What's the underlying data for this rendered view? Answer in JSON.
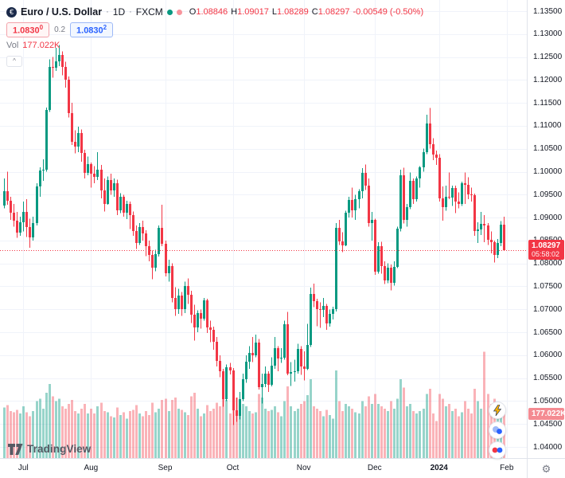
{
  "colors": {
    "up": "#089981",
    "down": "#f23645",
    "vol_up": "rgba(8,153,129,0.42)",
    "vol_down": "rgba(242,54,69,0.38)",
    "grid": "#f0f3fa",
    "accent_blue": "#2962ff",
    "price_tag_bg": "#f23645",
    "vol_tag_bg": "#f48b92"
  },
  "header": {
    "symbol": "Euro / U.S. Dollar",
    "separator": "·",
    "interval": "1D",
    "exchange": "FXCM",
    "logo_letter": "€",
    "ohlc": {
      "o_label": "O",
      "o": "1.08846",
      "h_label": "H",
      "h": "1.09017",
      "l_label": "L",
      "l": "1.08289",
      "c_label": "C",
      "c": "1.08297",
      "change": "-0.00549 (-0.50%)"
    },
    "sell": {
      "main": "1.0830",
      "sup": "0"
    },
    "spread": "0.2",
    "buy": {
      "main": "1.0830",
      "sup": "2"
    },
    "vol_label": "Vol",
    "vol_value": "177.022K",
    "collapse_glyph": "^"
  },
  "footer": {
    "logo_text": "TradingView",
    "gear_glyph": "⚙"
  },
  "chart_data": {
    "type": "candlestick",
    "title": "Euro / U.S. Dollar",
    "interval": "1D",
    "exchange": "FXCM",
    "legend_note": "volume overlay at bottom of pane",
    "price_axis_top": 1.135,
    "price_axis_bottom": 1.04,
    "price_ticks": [
      "1.13500",
      "1.13000",
      "1.12500",
      "1.12000",
      "1.11500",
      "1.11000",
      "1.10500",
      "1.10000",
      "1.09500",
      "1.09000",
      "1.08500",
      "1.08000",
      "1.07500",
      "1.07000",
      "1.06500",
      "1.06000",
      "1.05500",
      "1.05000",
      "1.04500",
      "1.04000"
    ],
    "time_ticks": [
      {
        "label": "Jul",
        "index": 6,
        "bold": false
      },
      {
        "label": "Aug",
        "index": 27,
        "bold": false
      },
      {
        "label": "Sep",
        "index": 50,
        "bold": false
      },
      {
        "label": "Oct",
        "index": 71,
        "bold": false
      },
      {
        "label": "Nov",
        "index": 93,
        "bold": false
      },
      {
        "label": "Dec",
        "index": 115,
        "bold": false
      },
      {
        "label": "2024",
        "index": 135,
        "bold": true
      },
      {
        "label": "Feb",
        "index": 156,
        "bold": false
      }
    ],
    "last_price": 1.08297,
    "last_price_label": "1.08297",
    "countdown": "05:58:02",
    "last_volume_k": 177.022,
    "last_volume_label": "177.022K",
    "candle_format": [
      "open",
      "high",
      "low",
      "close",
      "volume_k"
    ],
    "candles": [
      [
        1.0927,
        1.0985,
        1.092,
        1.0957,
        205
      ],
      [
        1.0957,
        1.1,
        1.0928,
        1.0936,
        215
      ],
      [
        1.0936,
        1.0945,
        1.0895,
        1.091,
        190
      ],
      [
        1.091,
        1.093,
        1.088,
        1.0893,
        185
      ],
      [
        1.0893,
        1.0912,
        1.0856,
        1.0868,
        195
      ],
      [
        1.0868,
        1.0902,
        1.086,
        1.089,
        180
      ],
      [
        1.089,
        1.0935,
        1.087,
        1.0912,
        210
      ],
      [
        1.0912,
        1.094,
        1.0858,
        1.088,
        185
      ],
      [
        1.088,
        1.0898,
        1.0834,
        1.0857,
        170
      ],
      [
        1.0857,
        1.0902,
        1.085,
        1.0888,
        190
      ],
      [
        1.0888,
        1.0975,
        1.0883,
        1.0968,
        230
      ],
      [
        1.0968,
        1.101,
        1.0945,
        1.1002,
        240
      ],
      [
        1.1002,
        1.1027,
        1.098,
        1.1005,
        200
      ],
      [
        1.1005,
        1.114,
        1.1,
        1.1135,
        265
      ],
      [
        1.1135,
        1.1245,
        1.113,
        1.1228,
        300
      ],
      [
        1.1228,
        1.125,
        1.1205,
        1.1227,
        250
      ],
      [
        1.1227,
        1.127,
        1.122,
        1.124,
        230
      ],
      [
        1.124,
        1.1276,
        1.123,
        1.1255,
        240
      ],
      [
        1.1255,
        1.1262,
        1.121,
        1.1228,
        210
      ],
      [
        1.1228,
        1.124,
        1.1183,
        1.12,
        200
      ],
      [
        1.12,
        1.1208,
        1.1118,
        1.1127,
        220
      ],
      [
        1.1127,
        1.115,
        1.1058,
        1.1065,
        235
      ],
      [
        1.1065,
        1.109,
        1.104,
        1.1055,
        190
      ],
      [
        1.1055,
        1.1098,
        1.1043,
        1.1085,
        180
      ],
      [
        1.1085,
        1.1092,
        1.1022,
        1.104,
        200
      ],
      [
        1.104,
        1.1048,
        1.0985,
        1.0998,
        220
      ],
      [
        1.0998,
        1.1033,
        1.0992,
        1.1016,
        180
      ],
      [
        1.1016,
        1.102,
        1.0965,
        1.0995,
        200
      ],
      [
        1.0995,
        1.1012,
        1.0975,
        1.0988,
        180
      ],
      [
        1.0988,
        1.1043,
        1.0982,
        1.1005,
        210
      ],
      [
        1.1005,
        1.1015,
        1.0942,
        1.096,
        225
      ],
      [
        1.096,
        1.0985,
        1.0913,
        1.093,
        190
      ],
      [
        1.093,
        1.099,
        1.0928,
        1.0982,
        185
      ],
      [
        1.0982,
        1.0996,
        1.095,
        1.096,
        170
      ],
      [
        1.096,
        1.0985,
        1.0945,
        1.0975,
        165
      ],
      [
        1.0975,
        1.0983,
        1.0905,
        1.0915,
        205
      ],
      [
        1.0915,
        1.0953,
        1.091,
        1.0945,
        175
      ],
      [
        1.0945,
        1.095,
        1.0902,
        1.091,
        185
      ],
      [
        1.091,
        1.0937,
        1.0897,
        1.093,
        160
      ],
      [
        1.093,
        1.0935,
        1.0875,
        1.0905,
        190
      ],
      [
        1.0905,
        1.0913,
        1.086,
        1.087,
        195
      ],
      [
        1.087,
        1.0883,
        1.0832,
        1.0845,
        215
      ],
      [
        1.0845,
        1.0888,
        1.084,
        1.088,
        180
      ],
      [
        1.088,
        1.0893,
        1.085,
        1.0865,
        170
      ],
      [
        1.0865,
        1.0872,
        1.0816,
        1.0838,
        190
      ],
      [
        1.0838,
        1.085,
        1.0805,
        1.0818,
        175
      ],
      [
        1.0818,
        1.0828,
        1.0766,
        1.079,
        225
      ],
      [
        1.079,
        1.083,
        1.0783,
        1.082,
        185
      ],
      [
        1.082,
        1.0883,
        1.0815,
        1.0878,
        200
      ],
      [
        1.0878,
        1.0928,
        1.0838,
        1.0843,
        235
      ],
      [
        1.0843,
        1.085,
        1.0772,
        1.0779,
        240
      ],
      [
        1.0779,
        1.0808,
        1.076,
        1.0795,
        190
      ],
      [
        1.0795,
        1.08,
        1.0715,
        1.0725,
        235
      ],
      [
        1.0725,
        1.0748,
        1.0686,
        1.07,
        245
      ],
      [
        1.07,
        1.0745,
        1.069,
        1.073,
        200
      ],
      [
        1.073,
        1.0738,
        1.0686,
        1.07,
        195
      ],
      [
        1.07,
        1.076,
        1.0692,
        1.075,
        185
      ],
      [
        1.075,
        1.0767,
        1.0712,
        1.0732,
        175
      ],
      [
        1.0732,
        1.074,
        1.067,
        1.0688,
        250
      ],
      [
        1.0688,
        1.071,
        1.0632,
        1.066,
        265
      ],
      [
        1.066,
        1.0698,
        1.065,
        1.0692,
        200
      ],
      [
        1.0692,
        1.07,
        1.0658,
        1.068,
        170
      ],
      [
        1.068,
        1.0725,
        1.0675,
        1.072,
        180
      ],
      [
        1.072,
        1.0723,
        1.0648,
        1.066,
        215
      ],
      [
        1.066,
        1.0675,
        1.0628,
        1.0655,
        190
      ],
      [
        1.0655,
        1.0662,
        1.0612,
        1.063,
        200
      ],
      [
        1.063,
        1.064,
        1.0575,
        1.0588,
        225
      ],
      [
        1.0588,
        1.06,
        1.0552,
        1.0565,
        210
      ],
      [
        1.0565,
        1.057,
        1.0488,
        1.0505,
        255
      ],
      [
        1.0505,
        1.058,
        1.05,
        1.0573,
        235
      ],
      [
        1.0573,
        1.0583,
        1.0558,
        1.0567,
        180
      ],
      [
        1.0567,
        1.0572,
        1.0448,
        1.048,
        285
      ],
      [
        1.048,
        1.0508,
        1.0455,
        1.0467,
        245
      ],
      [
        1.0467,
        1.052,
        1.046,
        1.0505,
        230
      ],
      [
        1.0505,
        1.056,
        1.05,
        1.0548,
        220
      ],
      [
        1.0548,
        1.06,
        1.054,
        1.0586,
        210
      ],
      [
        1.0586,
        1.062,
        1.057,
        1.0605,
        190
      ],
      [
        1.0605,
        1.064,
        1.0585,
        1.06,
        180
      ],
      [
        1.06,
        1.0645,
        1.0595,
        1.0627,
        185
      ],
      [
        1.0627,
        1.0635,
        1.0525,
        1.053,
        260
      ],
      [
        1.053,
        1.056,
        1.0495,
        1.0537,
        245
      ],
      [
        1.0537,
        1.0575,
        1.053,
        1.056,
        200
      ],
      [
        1.056,
        1.0565,
        1.052,
        1.0536,
        190
      ],
      [
        1.0536,
        1.0595,
        1.0532,
        1.0577,
        195
      ],
      [
        1.0577,
        1.064,
        1.057,
        1.0615,
        210
      ],
      [
        1.0615,
        1.062,
        1.0565,
        1.0593,
        185
      ],
      [
        1.0593,
        1.0615,
        1.0583,
        1.0594,
        170
      ],
      [
        1.0594,
        1.0675,
        1.059,
        1.0668,
        230
      ],
      [
        1.0668,
        1.0694,
        1.0556,
        1.056,
        290
      ],
      [
        1.056,
        1.0585,
        1.0533,
        1.0563,
        210
      ],
      [
        1.0563,
        1.059,
        1.0542,
        1.0565,
        190
      ],
      [
        1.0565,
        1.0625,
        1.056,
        1.0614,
        200
      ],
      [
        1.0614,
        1.062,
        1.0557,
        1.0575,
        220
      ],
      [
        1.0575,
        1.0608,
        1.0545,
        1.057,
        230
      ],
      [
        1.057,
        1.0668,
        1.0568,
        1.0622,
        255
      ],
      [
        1.0622,
        1.0747,
        1.0618,
        1.0733,
        320
      ],
      [
        1.0733,
        1.0756,
        1.0705,
        1.0718,
        210
      ],
      [
        1.0718,
        1.0723,
        1.0663,
        1.07,
        200
      ],
      [
        1.07,
        1.0715,
        1.066,
        1.0698,
        190
      ],
      [
        1.0698,
        1.0725,
        1.0683,
        1.0707,
        170
      ],
      [
        1.0707,
        1.0712,
        1.0655,
        1.067,
        195
      ],
      [
        1.067,
        1.07,
        1.0662,
        1.069,
        175
      ],
      [
        1.069,
        1.0706,
        1.0678,
        1.07,
        160
      ],
      [
        1.07,
        1.0888,
        1.0695,
        1.0877,
        355
      ],
      [
        1.0877,
        1.0895,
        1.084,
        1.0848,
        230
      ],
      [
        1.0848,
        1.0868,
        1.0825,
        1.084,
        190
      ],
      [
        1.084,
        1.0915,
        1.0838,
        1.091,
        220
      ],
      [
        1.091,
        1.0945,
        1.09,
        1.0938,
        210
      ],
      [
        1.0938,
        1.0965,
        1.09,
        1.0915,
        200
      ],
      [
        1.0915,
        1.095,
        1.0895,
        1.094,
        185
      ],
      [
        1.094,
        1.0962,
        1.092,
        1.0957,
        180
      ],
      [
        1.0957,
        1.1008,
        1.0942,
        1.0997,
        230
      ],
      [
        1.0997,
        1.1016,
        1.096,
        1.097,
        210
      ],
      [
        1.097,
        1.0985,
        1.088,
        1.0888,
        250
      ],
      [
        1.0888,
        1.0912,
        1.085,
        1.0895,
        220
      ],
      [
        1.0895,
        1.0898,
        1.0775,
        1.0782,
        260
      ],
      [
        1.0782,
        1.0846,
        1.0778,
        1.0837,
        220
      ],
      [
        1.0837,
        1.0847,
        1.0778,
        1.0795,
        210
      ],
      [
        1.0795,
        1.0805,
        1.0755,
        1.0763,
        200
      ],
      [
        1.0763,
        1.08,
        1.0757,
        1.079,
        190
      ],
      [
        1.079,
        1.0798,
        1.0741,
        1.0758,
        230
      ],
      [
        1.0758,
        1.0805,
        1.0752,
        1.0793,
        200
      ],
      [
        1.0793,
        1.088,
        1.079,
        1.0876,
        240
      ],
      [
        1.0876,
        1.1004,
        1.087,
        1.0993,
        320
      ],
      [
        1.0993,
        1.1009,
        1.0887,
        1.0895,
        285
      ],
      [
        1.0895,
        1.093,
        1.088,
        1.0922,
        210
      ],
      [
        1.0922,
        1.0998,
        1.0918,
        1.098,
        220
      ],
      [
        1.098,
        1.0985,
        1.093,
        1.094,
        190
      ],
      [
        1.094,
        1.099,
        1.0935,
        1.0985,
        180
      ],
      [
        1.0985,
        1.1012,
        1.0965,
        1.1009,
        190
      ],
      [
        1.1009,
        1.105,
        1.1,
        1.1043,
        200
      ],
      [
        1.1043,
        1.1124,
        1.1038,
        1.1105,
        260
      ],
      [
        1.1105,
        1.1139,
        1.105,
        1.106,
        280
      ],
      [
        1.106,
        1.1073,
        1.1025,
        1.1038,
        180
      ],
      [
        1.1038,
        1.1046,
        1.1015,
        1.103,
        150
      ],
      [
        1.103,
        1.1038,
        1.0935,
        1.0942,
        260
      ],
      [
        1.0942,
        1.0968,
        1.0893,
        1.0922,
        240
      ],
      [
        1.0922,
        1.097,
        1.0915,
        1.0945,
        210
      ],
      [
        1.0945,
        1.0998,
        1.094,
        1.0944,
        220
      ],
      [
        1.0944,
        1.097,
        1.0925,
        1.0965,
        190
      ],
      [
        1.0965,
        1.097,
        1.091,
        1.0935,
        200
      ],
      [
        1.0935,
        1.0955,
        1.092,
        1.093,
        170
      ],
      [
        1.093,
        1.0978,
        1.0925,
        1.0975,
        185
      ],
      [
        1.0975,
        1.0998,
        1.093,
        1.0972,
        230
      ],
      [
        1.0972,
        1.0988,
        1.094,
        1.0951,
        200
      ],
      [
        1.0951,
        1.0965,
        1.0935,
        1.0948,
        180
      ],
      [
        1.0948,
        1.0952,
        1.086,
        1.087,
        280
      ],
      [
        1.087,
        1.089,
        1.0845,
        1.0875,
        230
      ],
      [
        1.0875,
        1.0912,
        1.0862,
        1.0887,
        200
      ],
      [
        1.0887,
        1.0905,
        1.0846,
        1.0883,
        430
      ],
      [
        1.0883,
        1.0888,
        1.084,
        1.0852,
        260
      ],
      [
        1.0852,
        1.087,
        1.0822,
        1.0846,
        220
      ],
      [
        1.0846,
        1.085,
        1.0802,
        1.0818,
        240
      ],
      [
        1.0818,
        1.0853,
        1.0812,
        1.0845,
        200
      ],
      [
        1.0845,
        1.0892,
        1.0838,
        1.0885,
        210
      ],
      [
        1.08846,
        1.09017,
        1.08289,
        1.08297,
        177.022
      ]
    ]
  }
}
